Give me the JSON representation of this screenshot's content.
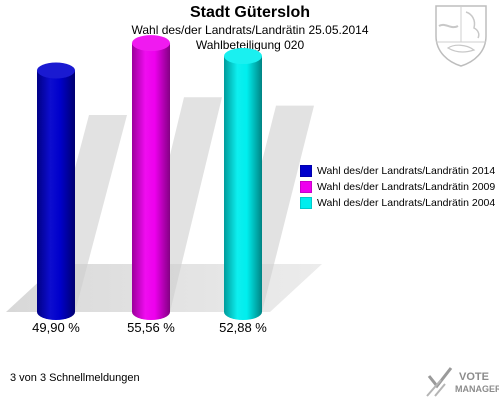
{
  "header": {
    "title": "Stadt Gütersloh",
    "subtitle": "Wahl des/der Landrats/Landrätin 25.05.2014",
    "subtitle2": "Wahlbeteiligung 020"
  },
  "chart_data": {
    "type": "bar",
    "categories": [
      "Wahl des/der Landrats/Landrätin 2014",
      "Wahl des/der Landrats/Landrätin 2009",
      "Wahl des/der Landrats/Landrätin 2004"
    ],
    "values": [
      49.9,
      55.56,
      52.88
    ],
    "value_labels": [
      "49,90 %",
      "55,56 %",
      "52,88 %"
    ],
    "colors": [
      "#0000cc",
      "#ee00ee",
      "#00eeee"
    ],
    "ylim": [
      0,
      60
    ],
    "grid": false,
    "legend_position": "right"
  },
  "legend": {
    "items": [
      {
        "label": "Wahl des/der Landrats/Landrätin 2014",
        "color": "#0000cc"
      },
      {
        "label": "Wahl des/der Landrats/Landrätin 2009",
        "color": "#ee00ee"
      },
      {
        "label": "Wahl des/der Landrats/Landrätin 2004",
        "color": "#00eeee"
      }
    ]
  },
  "footer": {
    "status": "3 von 3 Schnellmeldungen"
  },
  "branding": {
    "logo_text_1": "VOTE",
    "logo_text_2": "MANAGER",
    "crest_icon": "nrw-coat-of-arms-icon",
    "check_icon": "ballot-check-icon"
  }
}
